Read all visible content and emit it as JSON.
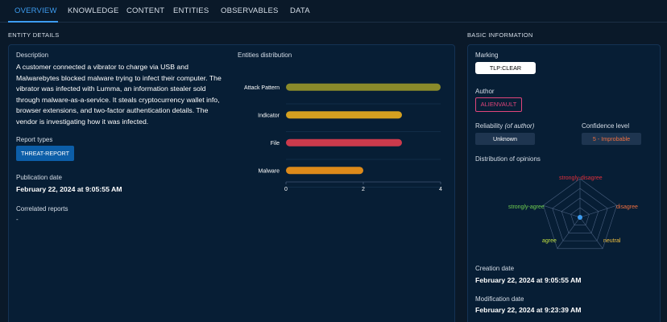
{
  "tabs": [
    {
      "label": "OVERVIEW",
      "active": true
    },
    {
      "label": "KNOWLEDGE"
    },
    {
      "label": "CONTENT"
    },
    {
      "label": "ENTITIES"
    },
    {
      "label": "OBSERVABLES"
    },
    {
      "label": "DATA"
    }
  ],
  "entity_details": {
    "section_title": "ENTITY DETAILS",
    "description_label": "Description",
    "description_text": "A customer connected a vibrator to charge via USB and Malwarebytes blocked malware trying to infect their computer. The vibrator was infected with Lumma, an information stealer sold through malware-as-a-service. It steals cryptocurrency wallet info, browser extensions, and two-factor authentication details. The vendor is investigating how it was infected.",
    "report_types_label": "Report types",
    "report_type": "THREAT-REPORT",
    "publication_date_label": "Publication date",
    "publication_date": "February 22, 2024 at 9:05:55 AM",
    "correlated_reports_label": "Correlated reports",
    "correlated_reports_value": "-",
    "entities_distribution_label": "Entities distribution"
  },
  "chart_data": {
    "type": "bar",
    "orientation": "horizontal",
    "categories": [
      "Attack Pattern",
      "Indicator",
      "File",
      "Malware"
    ],
    "values": [
      4,
      3,
      3,
      2
    ],
    "colors": [
      "#8a8a2a",
      "#d4a020",
      "#cc3a4c",
      "#dd8a1a"
    ],
    "xlim": [
      0,
      4
    ],
    "xticks": [
      "0",
      "2",
      "4"
    ],
    "grid": true
  },
  "basic_info": {
    "section_title": "BASIC INFORMATION",
    "marking_label": "Marking",
    "marking_value": "TLP:CLEAR",
    "author_label": "Author",
    "author_value": "ALIENVAULT",
    "reliability_label": "Reliability",
    "reliability_suffix": "(of author)",
    "reliability_value": "Unknown",
    "confidence_label": "Confidence level",
    "confidence_value": "5 - Improbable",
    "opinions_label": "Distribution of opinions",
    "opinions": {
      "strongly_disagree": "strongly-disagree",
      "disagree": "disagree",
      "neutral": "neutral",
      "agree": "agree",
      "strongly_agree": "strongly-agree"
    },
    "creation_date_label": "Creation date",
    "creation_date": "February 22, 2024 at 9:05:55 AM",
    "modification_date_label": "Modification date",
    "modification_date": "February 22, 2024 at 9:23:39 AM"
  },
  "colors": {
    "accent": "#3d9cf0",
    "background": "#0a1929",
    "panel": "#071e35",
    "report_type_chip": "#0c5ea8",
    "author_chip": "#e0457b",
    "strongly_disagree": "#e0303c",
    "disagree": "#f07040",
    "neutral": "#f0c040",
    "agree": "#c0e040",
    "strongly_agree": "#70d050"
  }
}
